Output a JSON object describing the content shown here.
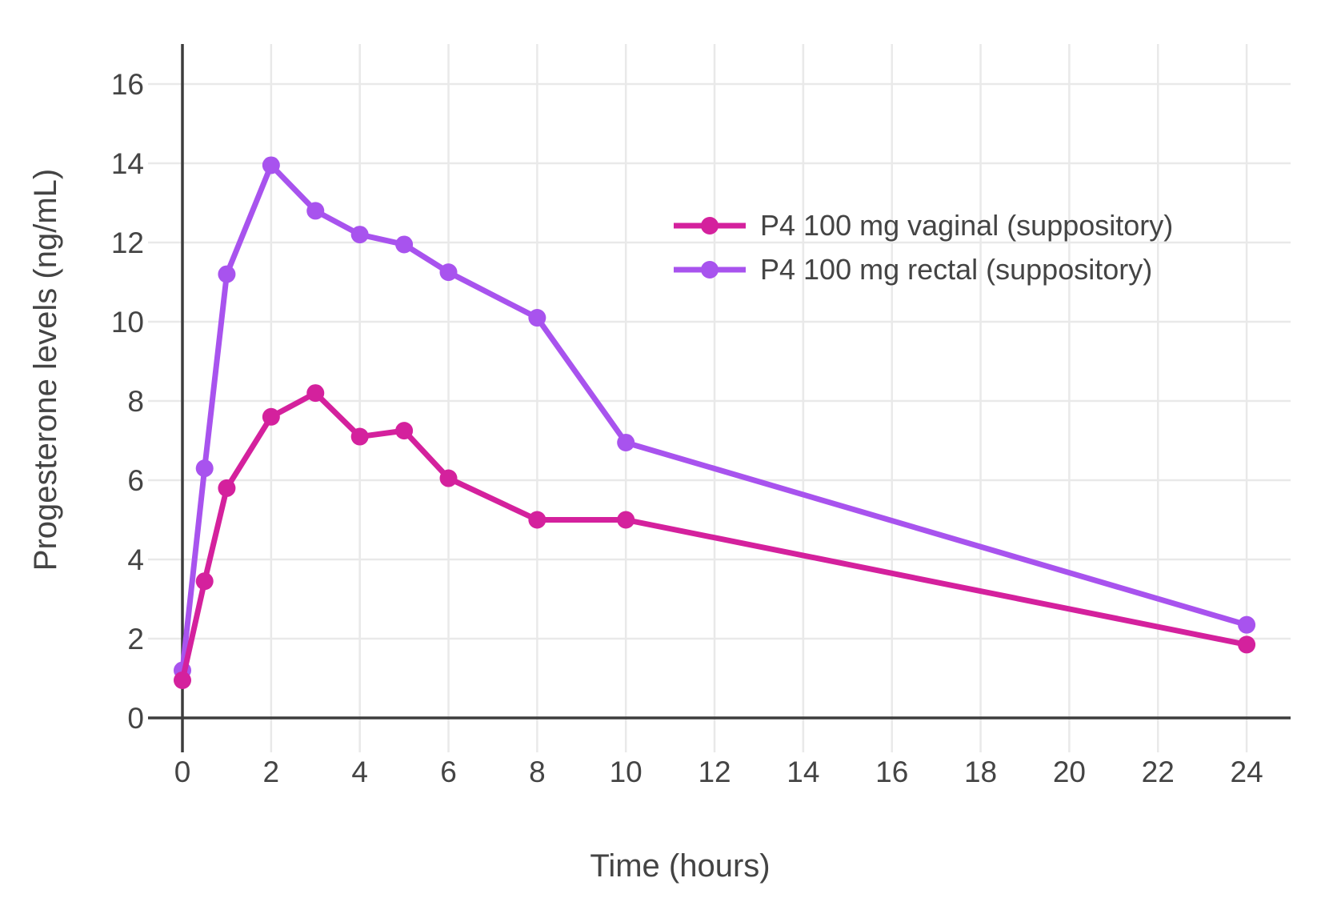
{
  "chart_data": {
    "type": "line",
    "title": "",
    "xlabel": "Time (hours)",
    "ylabel": "Progesterone levels (ng/mL)",
    "xlim": [
      0,
      24
    ],
    "ylim": [
      0,
      16
    ],
    "x_ticks": [
      0,
      2,
      4,
      6,
      8,
      10,
      12,
      14,
      16,
      18,
      20,
      22,
      24
    ],
    "y_ticks": [
      0,
      2,
      4,
      6,
      8,
      10,
      12,
      14,
      16
    ],
    "grid": true,
    "legend_position": "inside-upper-right",
    "x": [
      0,
      0.5,
      1,
      2,
      3,
      4,
      5,
      6,
      8,
      10,
      24
    ],
    "series": [
      {
        "name": "P4 100 mg vaginal (suppository)",
        "color": "#d4219d",
        "values": [
          0.95,
          3.45,
          5.8,
          7.6,
          8.2,
          7.1,
          7.25,
          6.05,
          5.0,
          5.0,
          1.85
        ]
      },
      {
        "name": "P4 100 mg rectal (suppository)",
        "color": "#a853ee",
        "values": [
          1.2,
          6.3,
          11.2,
          13.95,
          12.8,
          12.2,
          11.95,
          11.25,
          10.1,
          6.95,
          2.35
        ]
      }
    ]
  },
  "colors": {
    "axis": "#3d3d3d",
    "grid": "#e9e9e9",
    "text": "#444444",
    "background": "#ffffff"
  }
}
